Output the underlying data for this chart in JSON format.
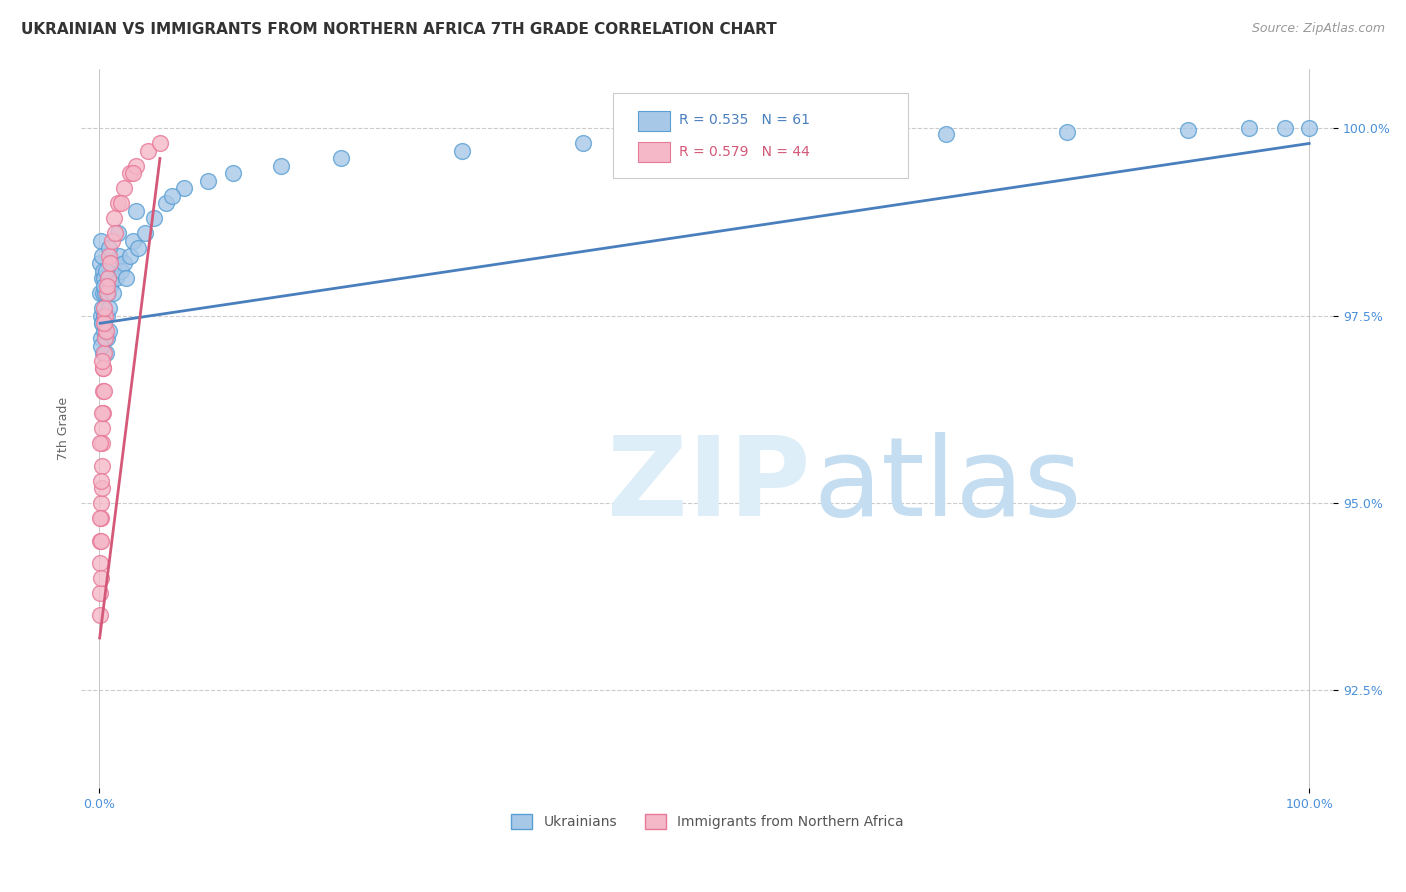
{
  "title": "UKRAINIAN VS IMMIGRANTS FROM NORTHERN AFRICA 7TH GRADE CORRELATION CHART",
  "source": "Source: ZipAtlas.com",
  "ylabel": "7th Grade",
  "yticks": [
    92.5,
    95.0,
    97.5,
    100.0
  ],
  "ytick_labels": [
    "92.5%",
    "95.0%",
    "97.5%",
    "100.0%"
  ],
  "ymin": 91.2,
  "ymax": 100.8,
  "xmin": -1.5,
  "xmax": 102.0,
  "color_blue": "#a8c8e8",
  "color_pink": "#f4b8c8",
  "color_blue_edge": "#5a9fd4",
  "color_pink_edge": "#e87898",
  "color_trendline_blue": "#4a7fbd",
  "color_trendline_pink": "#d45878",
  "background": "#ffffff",
  "title_fontsize": 11,
  "axis_label_fontsize": 9,
  "tick_fontsize": 9,
  "source_fontsize": 9,
  "blue_points_x": [
    0.05,
    0.08,
    0.1,
    0.12,
    0.15,
    0.18,
    0.2,
    0.22,
    0.25,
    0.28,
    0.3,
    0.32,
    0.35,
    0.38,
    0.4,
    0.45,
    0.5,
    0.55,
    0.6,
    0.65,
    0.7,
    0.75,
    0.8,
    0.9,
    1.0,
    1.1,
    1.2,
    1.4,
    1.6,
    1.8,
    2.0,
    2.2,
    2.5,
    2.8,
    3.2,
    3.8,
    4.5,
    5.5,
    7.0,
    9.0,
    11.0,
    15.0,
    20.0,
    30.0,
    40.0,
    50.0,
    60.0,
    70.0,
    80.0,
    90.0,
    95.0,
    98.0,
    100.0,
    0.15,
    0.25,
    0.35,
    0.55,
    0.8,
    1.5,
    3.0,
    6.0
  ],
  "blue_points_y": [
    97.8,
    98.2,
    97.5,
    98.5,
    97.2,
    98.0,
    97.6,
    98.3,
    97.4,
    98.1,
    97.0,
    97.8,
    97.3,
    98.0,
    97.5,
    97.2,
    97.8,
    97.0,
    97.5,
    97.2,
    97.8,
    97.3,
    97.6,
    97.9,
    98.0,
    97.8,
    98.2,
    98.0,
    98.3,
    98.1,
    98.2,
    98.0,
    98.3,
    98.5,
    98.4,
    98.6,
    98.8,
    99.0,
    99.2,
    99.3,
    99.4,
    99.5,
    99.6,
    99.7,
    99.8,
    99.85,
    99.9,
    99.92,
    99.95,
    99.98,
    100.0,
    100.0,
    100.0,
    97.1,
    97.4,
    97.9,
    98.1,
    98.4,
    98.6,
    98.9,
    99.1
  ],
  "pink_points_x": [
    0.02,
    0.04,
    0.06,
    0.08,
    0.1,
    0.12,
    0.15,
    0.18,
    0.2,
    0.22,
    0.25,
    0.28,
    0.3,
    0.32,
    0.35,
    0.4,
    0.45,
    0.5,
    0.55,
    0.6,
    0.7,
    0.8,
    1.0,
    1.2,
    1.5,
    2.0,
    2.5,
    3.0,
    4.0,
    5.0,
    0.1,
    0.15,
    0.2,
    0.3,
    0.4,
    0.6,
    0.9,
    1.3,
    1.8,
    2.8,
    0.05,
    0.08,
    0.18,
    0.35
  ],
  "pink_points_y": [
    93.5,
    94.2,
    93.8,
    94.5,
    94.0,
    95.0,
    94.8,
    95.5,
    95.2,
    96.0,
    95.8,
    96.5,
    96.2,
    96.8,
    96.5,
    97.0,
    97.2,
    97.5,
    97.3,
    97.8,
    98.0,
    98.3,
    98.5,
    98.8,
    99.0,
    99.2,
    99.4,
    99.5,
    99.7,
    99.8,
    94.5,
    95.3,
    96.2,
    96.8,
    97.4,
    97.9,
    98.2,
    98.6,
    99.0,
    99.4,
    94.8,
    95.8,
    96.9,
    97.6
  ],
  "blue_trendline_x0": 0.05,
  "blue_trendline_x1": 100.0,
  "blue_trendline_y0": 97.4,
  "blue_trendline_y1": 99.8,
  "pink_trendline_x0": 0.02,
  "pink_trendline_x1": 5.0,
  "pink_trendline_y0": 93.2,
  "pink_trendline_y1": 99.6
}
